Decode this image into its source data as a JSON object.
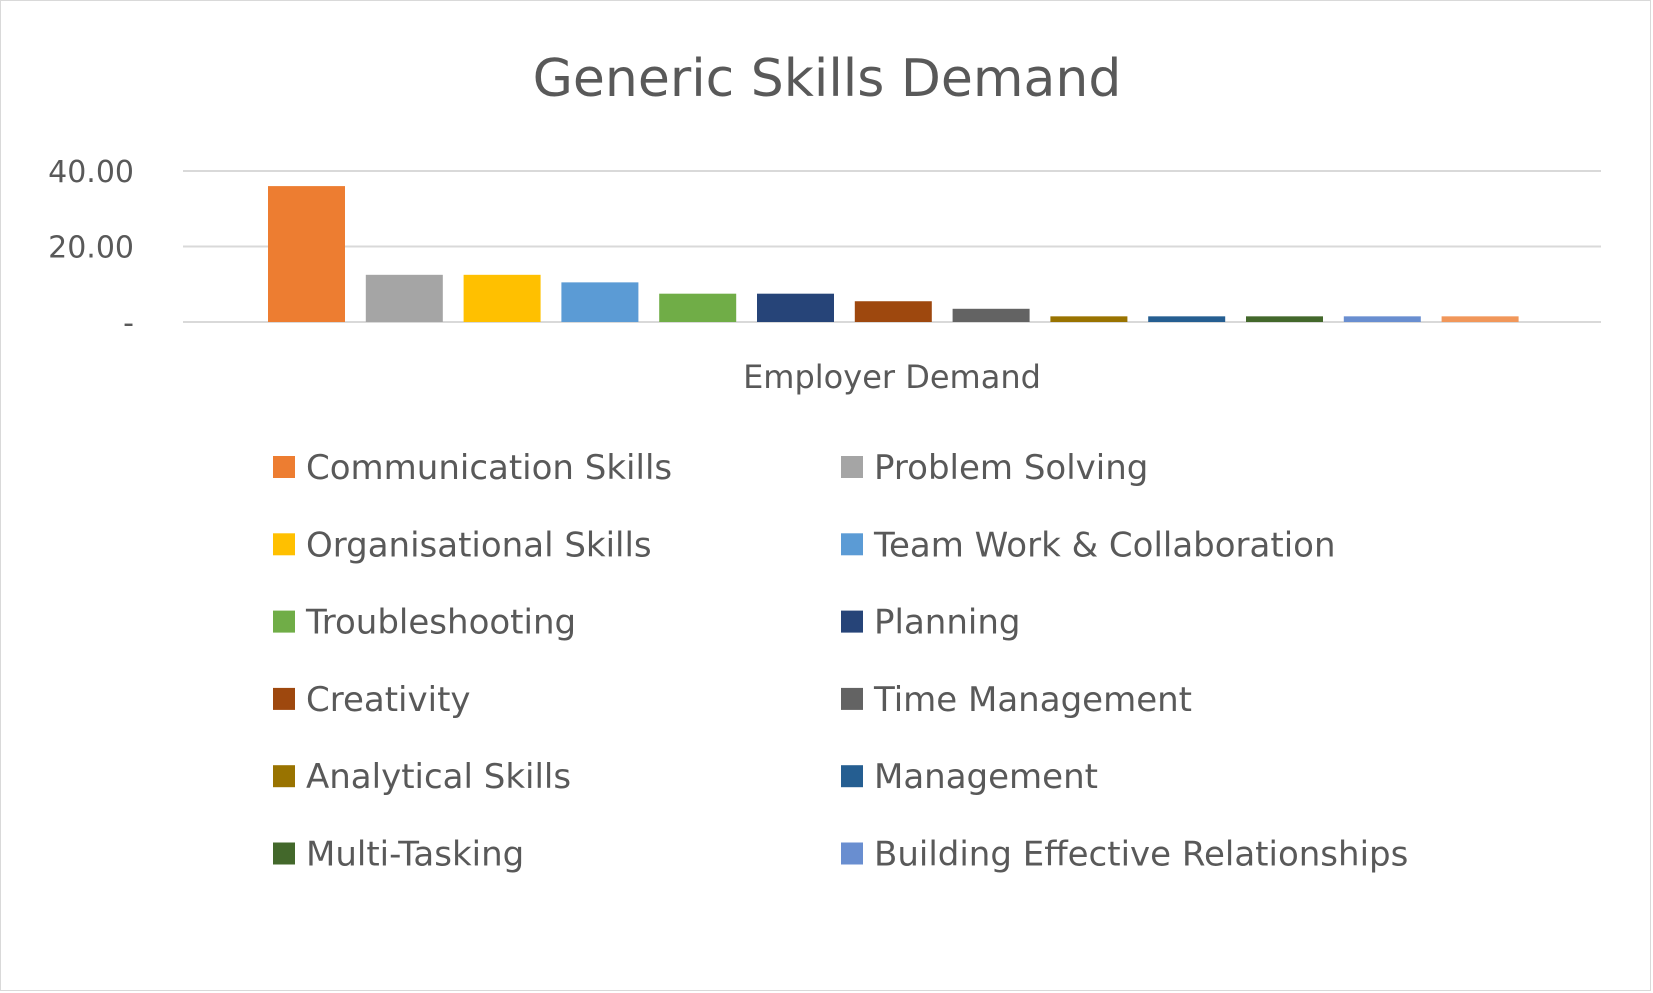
{
  "chart_data": {
    "type": "bar",
    "title": "Generic Skills Demand",
    "xlabel": "Employer Demand",
    "ylabel": "",
    "ylim": [
      0,
      40
    ],
    "yticks": [
      {
        "value": 0,
        "label": "-"
      },
      {
        "value": 20,
        "label": "20.00"
      },
      {
        "value": 40,
        "label": "40.00"
      }
    ],
    "grid": true,
    "legend_position": "bottom",
    "categories": [
      "Employer Demand"
    ],
    "series": [
      {
        "name": "Communication Skills",
        "value": 36,
        "color": "#ED7D31"
      },
      {
        "name": "Problem Solving",
        "value": 12.5,
        "color": "#A5A5A5"
      },
      {
        "name": "Organisational Skills",
        "value": 12.5,
        "color": "#FFC000"
      },
      {
        "name": "Team Work & Collaboration",
        "value": 10.5,
        "color": "#5B9BD5"
      },
      {
        "name": "Troubleshooting",
        "value": 7.5,
        "color": "#70AD47"
      },
      {
        "name": "Planning",
        "value": 7.5,
        "color": "#264478"
      },
      {
        "name": "Creativity",
        "value": 5.5,
        "color": "#9E480E"
      },
      {
        "name": "Time Management",
        "value": 3.5,
        "color": "#636363"
      },
      {
        "name": "Analytical Skills",
        "value": 1.5,
        "color": "#997300"
      },
      {
        "name": "Management",
        "value": 1.5,
        "color": "#255E91"
      },
      {
        "name": "Multi-Tasking",
        "value": 1.5,
        "color": "#43682B"
      },
      {
        "name": "Building Effective Relationships",
        "value": 1.5,
        "color": "#698ED0"
      },
      {
        "name": "",
        "value": 1.5,
        "color": "#F1975A"
      }
    ]
  }
}
